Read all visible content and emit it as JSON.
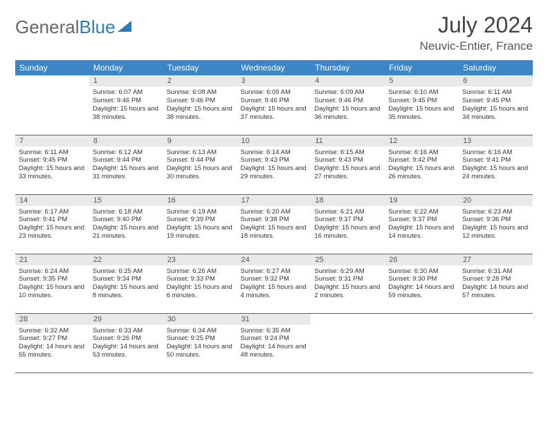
{
  "brand": {
    "part1": "General",
    "part2": "Blue"
  },
  "title": "July 2024",
  "location": "Neuvic-Entier, France",
  "colors": {
    "header_bg": "#3b86c6",
    "header_text": "#ffffff",
    "daynum_bg": "#e9e9e9",
    "row_border": "#2f6fa3",
    "logo_gray": "#666666",
    "logo_blue": "#2b7bbf"
  },
  "weekdays": [
    "Sunday",
    "Monday",
    "Tuesday",
    "Wednesday",
    "Thursday",
    "Friday",
    "Saturday"
  ],
  "weeks": [
    [
      {
        "n": "",
        "sunrise": "",
        "sunset": "",
        "daylight": ""
      },
      {
        "n": "1",
        "sunrise": "Sunrise: 6:07 AM",
        "sunset": "Sunset: 9:46 PM",
        "daylight": "Daylight: 15 hours and 38 minutes."
      },
      {
        "n": "2",
        "sunrise": "Sunrise: 6:08 AM",
        "sunset": "Sunset: 9:46 PM",
        "daylight": "Daylight: 15 hours and 38 minutes."
      },
      {
        "n": "3",
        "sunrise": "Sunrise: 6:09 AM",
        "sunset": "Sunset: 9:46 PM",
        "daylight": "Daylight: 15 hours and 37 minutes."
      },
      {
        "n": "4",
        "sunrise": "Sunrise: 6:09 AM",
        "sunset": "Sunset: 9:46 PM",
        "daylight": "Daylight: 15 hours and 36 minutes."
      },
      {
        "n": "5",
        "sunrise": "Sunrise: 6:10 AM",
        "sunset": "Sunset: 9:45 PM",
        "daylight": "Daylight: 15 hours and 35 minutes."
      },
      {
        "n": "6",
        "sunrise": "Sunrise: 6:11 AM",
        "sunset": "Sunset: 9:45 PM",
        "daylight": "Daylight: 15 hours and 34 minutes."
      }
    ],
    [
      {
        "n": "7",
        "sunrise": "Sunrise: 6:11 AM",
        "sunset": "Sunset: 9:45 PM",
        "daylight": "Daylight: 15 hours and 33 minutes."
      },
      {
        "n": "8",
        "sunrise": "Sunrise: 6:12 AM",
        "sunset": "Sunset: 9:44 PM",
        "daylight": "Daylight: 15 hours and 31 minutes."
      },
      {
        "n": "9",
        "sunrise": "Sunrise: 6:13 AM",
        "sunset": "Sunset: 9:44 PM",
        "daylight": "Daylight: 15 hours and 30 minutes."
      },
      {
        "n": "10",
        "sunrise": "Sunrise: 6:14 AM",
        "sunset": "Sunset: 9:43 PM",
        "daylight": "Daylight: 15 hours and 29 minutes."
      },
      {
        "n": "11",
        "sunrise": "Sunrise: 6:15 AM",
        "sunset": "Sunset: 9:43 PM",
        "daylight": "Daylight: 15 hours and 27 minutes."
      },
      {
        "n": "12",
        "sunrise": "Sunrise: 6:16 AM",
        "sunset": "Sunset: 9:42 PM",
        "daylight": "Daylight: 15 hours and 26 minutes."
      },
      {
        "n": "13",
        "sunrise": "Sunrise: 6:16 AM",
        "sunset": "Sunset: 9:41 PM",
        "daylight": "Daylight: 15 hours and 24 minutes."
      }
    ],
    [
      {
        "n": "14",
        "sunrise": "Sunrise: 6:17 AM",
        "sunset": "Sunset: 9:41 PM",
        "daylight": "Daylight: 15 hours and 23 minutes."
      },
      {
        "n": "15",
        "sunrise": "Sunrise: 6:18 AM",
        "sunset": "Sunset: 9:40 PM",
        "daylight": "Daylight: 15 hours and 21 minutes."
      },
      {
        "n": "16",
        "sunrise": "Sunrise: 6:19 AM",
        "sunset": "Sunset: 9:39 PM",
        "daylight": "Daylight: 15 hours and 19 minutes."
      },
      {
        "n": "17",
        "sunrise": "Sunrise: 6:20 AM",
        "sunset": "Sunset: 9:38 PM",
        "daylight": "Daylight: 15 hours and 18 minutes."
      },
      {
        "n": "18",
        "sunrise": "Sunrise: 6:21 AM",
        "sunset": "Sunset: 9:37 PM",
        "daylight": "Daylight: 15 hours and 16 minutes."
      },
      {
        "n": "19",
        "sunrise": "Sunrise: 6:22 AM",
        "sunset": "Sunset: 9:37 PM",
        "daylight": "Daylight: 15 hours and 14 minutes."
      },
      {
        "n": "20",
        "sunrise": "Sunrise: 6:23 AM",
        "sunset": "Sunset: 9:36 PM",
        "daylight": "Daylight: 15 hours and 12 minutes."
      }
    ],
    [
      {
        "n": "21",
        "sunrise": "Sunrise: 6:24 AM",
        "sunset": "Sunset: 9:35 PM",
        "daylight": "Daylight: 15 hours and 10 minutes."
      },
      {
        "n": "22",
        "sunrise": "Sunrise: 6:25 AM",
        "sunset": "Sunset: 9:34 PM",
        "daylight": "Daylight: 15 hours and 8 minutes."
      },
      {
        "n": "23",
        "sunrise": "Sunrise: 6:26 AM",
        "sunset": "Sunset: 9:33 PM",
        "daylight": "Daylight: 15 hours and 6 minutes."
      },
      {
        "n": "24",
        "sunrise": "Sunrise: 6:27 AM",
        "sunset": "Sunset: 9:32 PM",
        "daylight": "Daylight: 15 hours and 4 minutes."
      },
      {
        "n": "25",
        "sunrise": "Sunrise: 6:29 AM",
        "sunset": "Sunset: 9:31 PM",
        "daylight": "Daylight: 15 hours and 2 minutes."
      },
      {
        "n": "26",
        "sunrise": "Sunrise: 6:30 AM",
        "sunset": "Sunset: 9:30 PM",
        "daylight": "Daylight: 14 hours and 59 minutes."
      },
      {
        "n": "27",
        "sunrise": "Sunrise: 6:31 AM",
        "sunset": "Sunset: 9:28 PM",
        "daylight": "Daylight: 14 hours and 57 minutes."
      }
    ],
    [
      {
        "n": "28",
        "sunrise": "Sunrise: 6:32 AM",
        "sunset": "Sunset: 9:27 PM",
        "daylight": "Daylight: 14 hours and 55 minutes."
      },
      {
        "n": "29",
        "sunrise": "Sunrise: 6:33 AM",
        "sunset": "Sunset: 9:26 PM",
        "daylight": "Daylight: 14 hours and 53 minutes."
      },
      {
        "n": "30",
        "sunrise": "Sunrise: 6:34 AM",
        "sunset": "Sunset: 9:25 PM",
        "daylight": "Daylight: 14 hours and 50 minutes."
      },
      {
        "n": "31",
        "sunrise": "Sunrise: 6:35 AM",
        "sunset": "Sunset: 9:24 PM",
        "daylight": "Daylight: 14 hours and 48 minutes."
      },
      {
        "n": "",
        "sunrise": "",
        "sunset": "",
        "daylight": ""
      },
      {
        "n": "",
        "sunrise": "",
        "sunset": "",
        "daylight": ""
      },
      {
        "n": "",
        "sunrise": "",
        "sunset": "",
        "daylight": ""
      }
    ]
  ]
}
